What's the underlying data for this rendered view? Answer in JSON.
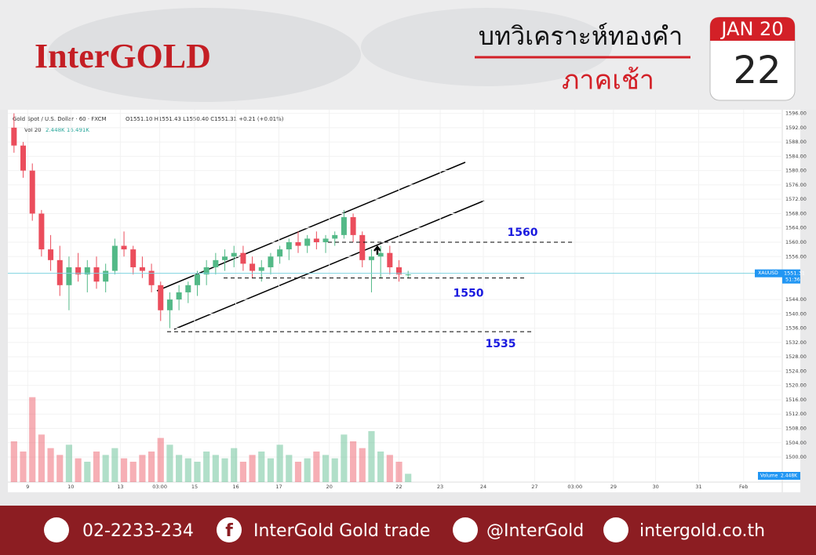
{
  "header": {
    "brand": "InterGOLD",
    "title": "บทวิเคราะห์ทองคำ",
    "subtitle": "ภาคเช้า",
    "month": "JAN 20",
    "day": "22"
  },
  "chart_data": {
    "type": "candlestick",
    "title": "Gold Spot / U.S. Dollar · 60 · FXCM",
    "ohlc_text": "O1551.10 H1551.43 L1550.40 C1551.31 +0.21 (+0.01%)",
    "volume_title": "Vol 20",
    "volume_text": "2.448K 16.491K",
    "series": [
      {
        "name": "XAUUSD",
        "open": [
          1592,
          1587,
          1580,
          1568,
          1558,
          1555,
          1548,
          1553,
          1551,
          1553,
          1549,
          1552,
          1559,
          1558,
          1553,
          1552,
          1548,
          1541,
          1544,
          1546,
          1548,
          1551,
          1553,
          1555,
          1556,
          1557,
          1554,
          1552,
          1553,
          1556,
          1558,
          1560,
          1559,
          1561,
          1560,
          1561,
          1562,
          1567,
          1562,
          1555,
          1556,
          1557,
          1553,
          1551
        ],
        "high": [
          1596,
          1588,
          1582,
          1569,
          1562,
          1559,
          1556,
          1557,
          1555,
          1556,
          1554,
          1561,
          1563,
          1559,
          1556,
          1554,
          1549,
          1546,
          1548,
          1549,
          1552,
          1555,
          1557,
          1558,
          1559,
          1559,
          1556,
          1555,
          1557,
          1559,
          1561,
          1563,
          1562,
          1563,
          1562,
          1563,
          1569,
          1568,
          1563,
          1558,
          1559,
          1559,
          1555,
          1552
        ],
        "low": [
          1585,
          1578,
          1566,
          1556,
          1552,
          1545,
          1541,
          1549,
          1546,
          1547,
          1546,
          1551,
          1556,
          1551,
          1550,
          1546,
          1538,
          1536,
          1541,
          1543,
          1545,
          1548,
          1551,
          1552,
          1553,
          1552,
          1550,
          1549,
          1551,
          1554,
          1555,
          1557,
          1557,
          1558,
          1557,
          1559,
          1561,
          1560,
          1553,
          1546,
          1550,
          1551,
          1549,
          1550
        ],
        "close": [
          1587,
          1580,
          1568,
          1558,
          1555,
          1548,
          1553,
          1551,
          1553,
          1549,
          1552,
          1559,
          1558,
          1553,
          1552,
          1548,
          1541,
          1544,
          1546,
          1548,
          1551,
          1553,
          1555,
          1556,
          1557,
          1554,
          1552,
          1553,
          1556,
          1558,
          1560,
          1559,
          1561,
          1560,
          1561,
          1562,
          1567,
          1562,
          1555,
          1556,
          1557,
          1553,
          1551,
          1551
        ],
        "volume": [
          12,
          9,
          25,
          14,
          10,
          8,
          11,
          7,
          6,
          9,
          8,
          10,
          7,
          6,
          8,
          9,
          13,
          11,
          8,
          7,
          6,
          9,
          8,
          7,
          10,
          6,
          8,
          9,
          7,
          11,
          8,
          6,
          7,
          9,
          8,
          7,
          14,
          12,
          10,
          15,
          9,
          8,
          6,
          2.448
        ]
      }
    ],
    "up_color": "#53b987",
    "down_color": "#eb4d5c",
    "xlim": [
      0,
      85
    ],
    "xticks": [
      {
        "value": 2.0,
        "label": "9"
      },
      {
        "value": 6.7,
        "label": "10"
      },
      {
        "value": 12.1,
        "label": "13"
      },
      {
        "value": 16.4,
        "label": "03:00"
      },
      {
        "value": 20.2,
        "label": "15"
      },
      {
        "value": 24.7,
        "label": "16"
      },
      {
        "value": 29.4,
        "label": "17"
      },
      {
        "value": 34.9,
        "label": "20"
      },
      {
        "value": 42.5,
        "label": "22"
      },
      {
        "value": 47.0,
        "label": "23"
      },
      {
        "value": 51.7,
        "label": "24"
      },
      {
        "value": 57.3,
        "label": "27"
      },
      {
        "value": 61.7,
        "label": "03:00"
      },
      {
        "value": 65.9,
        "label": "29"
      },
      {
        "value": 70.5,
        "label": "30"
      },
      {
        "value": 75.2,
        "label": "31"
      },
      {
        "value": 80.1,
        "label": "Feb"
      }
    ],
    "ylim": [
      1493,
      1597
    ],
    "yticks": [
      {
        "value": 1500,
        "label": "1500.00"
      },
      {
        "value": 1504,
        "label": "1504.00"
      },
      {
        "value": 1508,
        "label": "1508.00"
      },
      {
        "value": 1512,
        "label": "1512.00"
      },
      {
        "value": 1516,
        "label": "1516.00"
      },
      {
        "value": 1520,
        "label": "1520.00"
      },
      {
        "value": 1524,
        "label": "1524.00"
      },
      {
        "value": 1528,
        "label": "1528.00"
      },
      {
        "value": 1532,
        "label": "1532.00"
      },
      {
        "value": 1536,
        "label": "1536.00"
      },
      {
        "value": 1540,
        "label": "1540.00"
      },
      {
        "value": 1544,
        "label": "1544.00"
      },
      {
        "value": 1556,
        "label": "1556.00"
      },
      {
        "value": 1560,
        "label": "1560.00"
      },
      {
        "value": 1564,
        "label": "1564.00"
      },
      {
        "value": 1568,
        "label": "1568.00"
      },
      {
        "value": 1572,
        "label": "1572.00"
      },
      {
        "value": 1576,
        "label": "1576.00"
      },
      {
        "value": 1580,
        "label": "1580.00"
      },
      {
        "value": 1584,
        "label": "1584.00"
      },
      {
        "value": 1588,
        "label": "1588.00"
      },
      {
        "value": 1592,
        "label": "1592.00"
      },
      {
        "value": 1596,
        "label": "1596.00"
      }
    ],
    "vlim": [
      0,
      30
    ],
    "levels": [
      1560,
      1550,
      1535
    ],
    "last_price": 1551.31,
    "countdown": "51:36",
    "volume_axis_label": "Volume",
    "volume_last": "2.448K"
  },
  "footer": {
    "phone": "02-2233-234",
    "facebook": "InterGold Gold trade",
    "line": "@InterGold",
    "website": "intergold.co.th"
  }
}
